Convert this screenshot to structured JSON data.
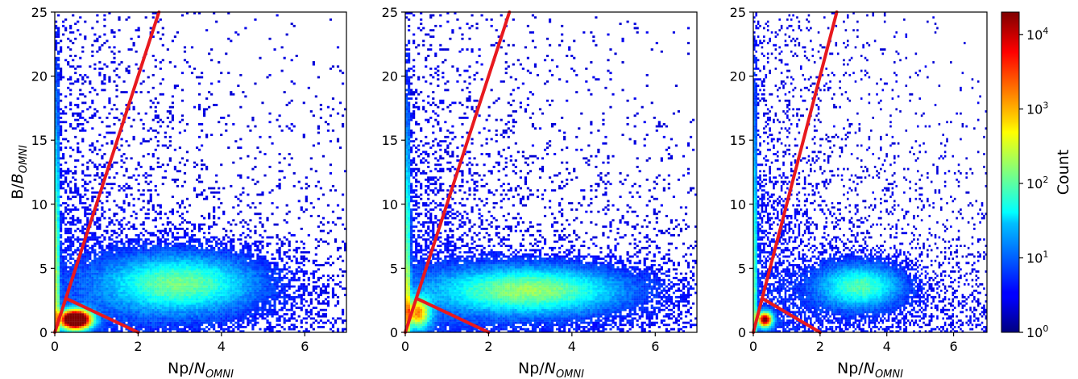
{
  "chart_data": [
    {
      "type": "heatmap",
      "panel": "left",
      "xlabel": {
        "main": "Np/",
        "sub": "N",
        "subscript": "OMNI"
      },
      "ylabel": {
        "main": "B/",
        "sub": "B",
        "subscript": "OMNI"
      },
      "xlim": [
        0,
        7
      ],
      "ylim": [
        0,
        25
      ],
      "xticks": [
        "0",
        "2",
        "4",
        "6"
      ],
      "yticks": [
        "0",
        "5",
        "10",
        "15",
        "20",
        "25"
      ],
      "clusters": [
        {
          "x": 0.5,
          "y": 1.0,
          "sx": 0.25,
          "sy": 0.5,
          "peak": 2.0,
          "shape": "gauss"
        },
        {
          "x": 3.0,
          "y": 3.8,
          "sx": 1.3,
          "sy": 1.6,
          "peak": 0.55,
          "shape": "gauss"
        },
        {
          "x": 0.05,
          "y": 5.0,
          "sx": 0.04,
          "sy": 9.0,
          "peak": 0.6,
          "shape": "wall"
        }
      ],
      "red_lines": [
        {
          "x": [
            0.0,
            2.5
          ],
          "y": [
            0.0,
            25.0
          ]
        },
        {
          "x": [
            0.3,
            2.0
          ],
          "y": [
            2.6,
            0.0
          ]
        }
      ]
    },
    {
      "type": "heatmap",
      "panel": "middle",
      "xlabel": {
        "main": "Np/",
        "sub": "N",
        "subscript": "OMNI"
      },
      "xlim": [
        0,
        7
      ],
      "ylim": [
        0,
        25
      ],
      "xticks": [
        "0",
        "2",
        "4",
        "6"
      ],
      "yticks": [
        "0",
        "5",
        "10",
        "15",
        "20",
        "25"
      ],
      "clusters": [
        {
          "x": 3.0,
          "y": 3.3,
          "sx": 1.6,
          "sy": 1.3,
          "peak": 0.6,
          "shape": "gauss"
        },
        {
          "x": 0.05,
          "y": 4.0,
          "sx": 0.05,
          "sy": 9.0,
          "peak": 0.55,
          "shape": "wall"
        },
        {
          "x": 0.3,
          "y": 1.5,
          "sx": 0.2,
          "sy": 0.8,
          "peak": 0.8,
          "shape": "gauss"
        }
      ],
      "red_lines": [
        {
          "x": [
            0.0,
            2.5
          ],
          "y": [
            0.0,
            25.0
          ]
        },
        {
          "x": [
            0.3,
            2.0
          ],
          "y": [
            2.6,
            0.0
          ]
        }
      ]
    },
    {
      "type": "heatmap",
      "panel": "right",
      "xlabel": {
        "main": "Np/",
        "sub": "N",
        "subscript": "OMNI"
      },
      "xlim": [
        0,
        7
      ],
      "ylim": [
        0,
        25
      ],
      "xticks": [
        "0",
        "2",
        "4",
        "6"
      ],
      "yticks": [
        "0",
        "5",
        "10",
        "15",
        "20",
        "25"
      ],
      "clusters": [
        {
          "x": 3.2,
          "y": 3.6,
          "sx": 0.9,
          "sy": 1.2,
          "peak": 0.5,
          "shape": "gauss"
        },
        {
          "x": 0.35,
          "y": 1.0,
          "sx": 0.15,
          "sy": 0.4,
          "peak": 1.3,
          "shape": "gauss"
        },
        {
          "x": 0.05,
          "y": 5.0,
          "sx": 0.04,
          "sy": 9.0,
          "peak": 0.5,
          "shape": "wall"
        }
      ],
      "red_lines": [
        {
          "x": [
            0.0,
            2.5
          ],
          "y": [
            0.0,
            25.0
          ]
        },
        {
          "x": [
            0.3,
            2.0
          ],
          "y": [
            2.6,
            0.0
          ]
        }
      ]
    }
  ],
  "colorbar": {
    "label": "Count",
    "scale": "log",
    "colormap": "jet",
    "range": [
      1,
      20000
    ],
    "ticks": [
      {
        "value": 1,
        "base": "10",
        "exp": "0"
      },
      {
        "value": 10,
        "base": "10",
        "exp": "1"
      },
      {
        "value": 100,
        "base": "10",
        "exp": "2"
      },
      {
        "value": 1000,
        "base": "10",
        "exp": "3"
      },
      {
        "value": 10000,
        "base": "10",
        "exp": "4"
      }
    ]
  },
  "colors": {
    "red_line": "#e8191e",
    "frame": "#000000"
  }
}
